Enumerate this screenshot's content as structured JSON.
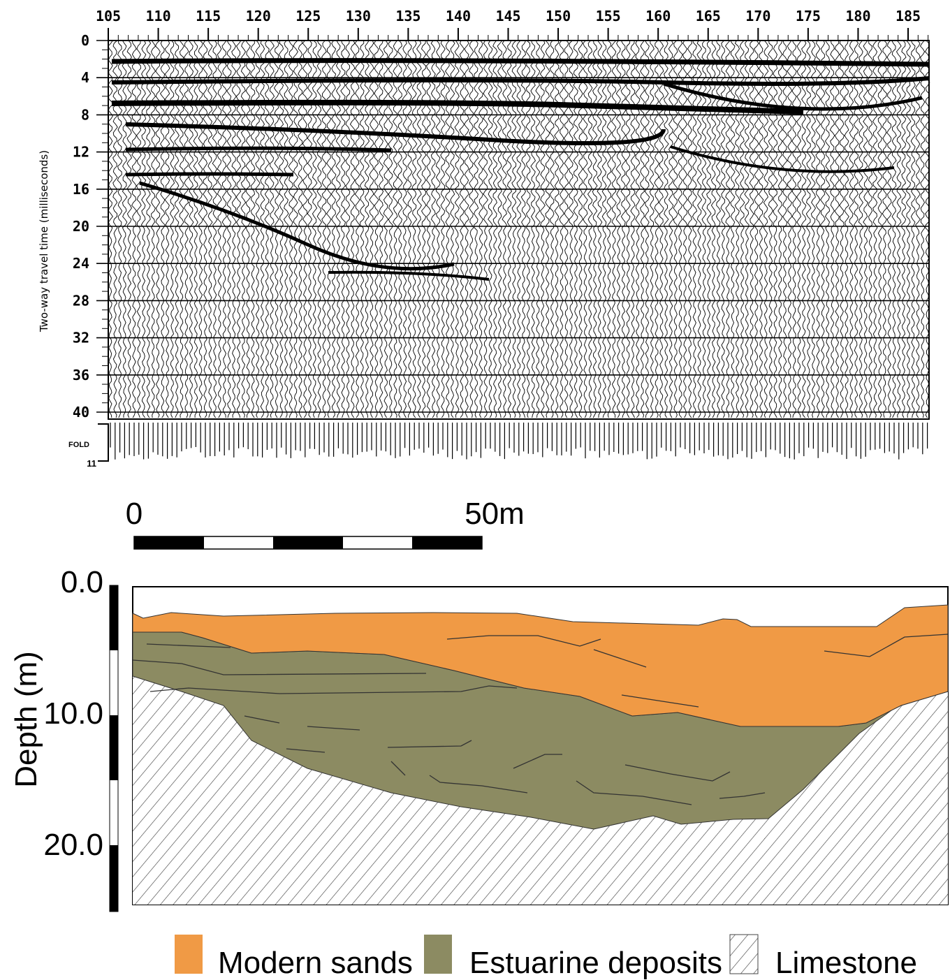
{
  "seismic": {
    "x_ticks": [
      "105",
      "110",
      "115",
      "120",
      "125",
      "130",
      "135",
      "140",
      "145",
      "150",
      "155",
      "160",
      "165",
      "170",
      "175",
      "180",
      "185"
    ],
    "y_ticks": [
      "0",
      "4",
      "8",
      "12",
      "16",
      "20",
      "24",
      "28",
      "32",
      "36",
      "40"
    ],
    "y_label": "Two-way travel time  (milliseconds)",
    "fold_label": "FOLD",
    "fold_value": "11"
  },
  "scale_bar": {
    "start_label": "0",
    "end_label": "50m"
  },
  "section": {
    "y_ticks": [
      "0.0",
      "10.0",
      "20.0"
    ],
    "y_label": "Depth (m)"
  },
  "legend": [
    "Modern sands",
    "Estuarine deposits",
    "Limestone"
  ]
}
